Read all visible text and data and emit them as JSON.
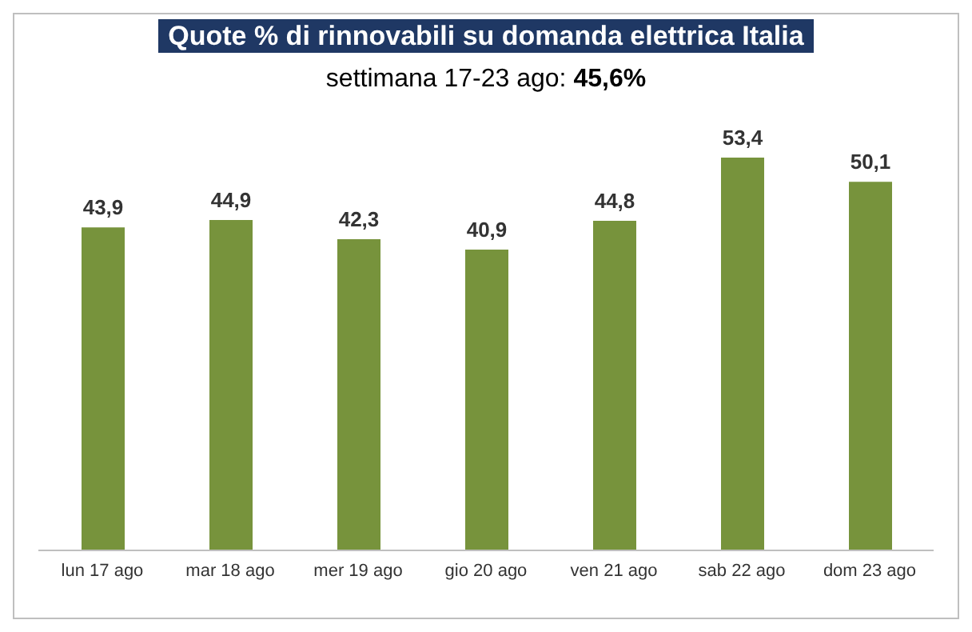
{
  "chart_data": {
    "type": "bar",
    "title": "Quote % di rinnovabili su domanda elettrica Italia",
    "subtitle": "settimana 17-23 ago: 45,6%",
    "categories": [
      "lun 17 ago",
      "mar 18 ago",
      "mer 19 ago",
      "gio 20 ago",
      "ven 21 ago",
      "sab 22 ago",
      "dom 23 ago"
    ],
    "values": [
      43.9,
      44.9,
      42.3,
      40.9,
      44.8,
      53.4,
      50.1
    ],
    "value_labels": [
      "43,9",
      "44,9",
      "42,3",
      "40,9",
      "44,8",
      "53,4",
      "50,1"
    ],
    "color": "#77933c",
    "grid": false
  }
}
